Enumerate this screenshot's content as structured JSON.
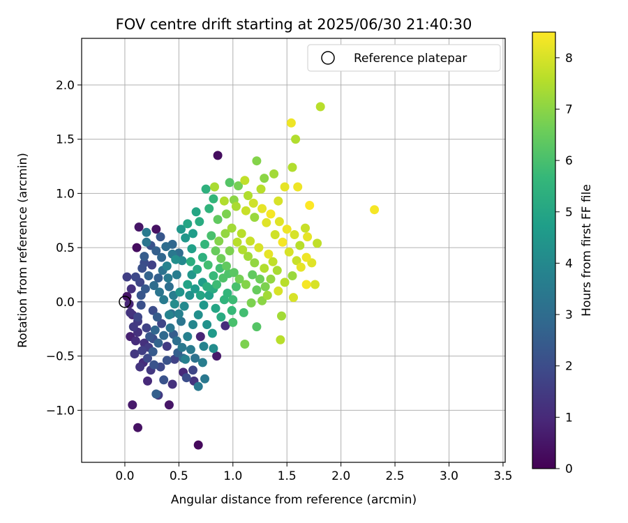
{
  "chart_data": {
    "type": "scatter",
    "title": "FOV centre drift starting at 2025/06/30 21:40:30",
    "xlabel": "Angular distance from reference (arcmin)",
    "ylabel": "Rotation from reference (arcmin)",
    "xlim": [
      -0.4,
      3.52
    ],
    "ylim": [
      -1.48,
      2.43
    ],
    "xticks": [
      0.0,
      0.5,
      1.0,
      1.5,
      2.0,
      2.5,
      3.0,
      3.5
    ],
    "xtick_labels": [
      "0.0",
      "0.5",
      "1.0",
      "1.5",
      "2.0",
      "2.5",
      "3.0",
      "3.5"
    ],
    "yticks": [
      -1.0,
      -0.5,
      0.0,
      0.5,
      1.0,
      1.5,
      2.0
    ],
    "ytick_labels": [
      "−1.0",
      "−0.5",
      "0.0",
      "0.5",
      "1.0",
      "1.5",
      "2.0"
    ],
    "grid": true,
    "legend_position": "top-right",
    "legend": [
      {
        "label": "Reference platepar",
        "marker": "open-circle"
      }
    ],
    "reference_point": {
      "x": 0.0,
      "y": 0.0
    },
    "colorbar": {
      "label": "Hours from first FF file",
      "colormap": "viridis",
      "range": [
        0,
        8.5
      ],
      "ticks": [
        0,
        1,
        2,
        3,
        4,
        5,
        6,
        7,
        8
      ],
      "tick_labels": [
        "0",
        "1",
        "2",
        "3",
        "4",
        "5",
        "6",
        "7",
        "8"
      ]
    },
    "viridis_stops": [
      "#440154",
      "#482878",
      "#3e4989",
      "#31688e",
      "#26828e",
      "#1f9e89",
      "#35b779",
      "#6ece58",
      "#b5de2b",
      "#fde725"
    ],
    "points": [
      [
        0.86,
        1.35,
        0.3
      ],
      [
        0.68,
        -1.32,
        0.2
      ],
      [
        0.12,
        -1.16,
        0.4
      ],
      [
        0.07,
        -0.95,
        0.6
      ],
      [
        0.41,
        -0.95,
        0.5
      ],
      [
        0.13,
        0.69,
        0.5
      ],
      [
        0.11,
        0.5,
        0.3
      ],
      [
        0.29,
        0.67,
        0.4
      ],
      [
        0.02,
        0.23,
        1.6
      ],
      [
        0.02,
        0.05,
        0.5
      ],
      [
        0.31,
        -0.86,
        1.5
      ],
      [
        0.44,
        -0.76,
        1.2
      ],
      [
        0.64,
        -0.73,
        1.3
      ],
      [
        0.54,
        -0.65,
        1.0
      ],
      [
        0.21,
        -0.73,
        1.0
      ],
      [
        0.05,
        -0.32,
        0.8
      ],
      [
        0.14,
        -0.6,
        1.3
      ],
      [
        0.85,
        -0.5,
        0.6
      ],
      [
        0.7,
        -0.32,
        0.9
      ],
      [
        0.93,
        -0.22,
        1.1
      ],
      [
        0.36,
        -0.72,
        2.2
      ],
      [
        0.63,
        -0.63,
        1.8
      ],
      [
        0.68,
        -0.78,
        3.4
      ],
      [
        0.74,
        -0.71,
        3.4
      ],
      [
        0.29,
        -0.85,
        2.6
      ],
      [
        0.57,
        -0.7,
        2.0
      ],
      [
        0.46,
        -0.53,
        1.7
      ],
      [
        0.27,
        -0.58,
        2.2
      ],
      [
        0.39,
        -0.41,
        1.5
      ],
      [
        0.09,
        -0.48,
        1.4
      ],
      [
        0.18,
        -0.38,
        1.2
      ],
      [
        0.34,
        -0.2,
        1.8
      ],
      [
        0.12,
        -0.18,
        1.5
      ],
      [
        0.26,
        -0.08,
        2.0
      ],
      [
        0.05,
        -0.1,
        1.3
      ],
      [
        0.15,
        0.06,
        2.3
      ],
      [
        0.1,
        0.23,
        1.9
      ],
      [
        0.25,
        0.34,
        1.7
      ],
      [
        0.18,
        0.42,
        2.5
      ],
      [
        0.2,
        0.55,
        3.3
      ],
      [
        0.2,
        0.64,
        3.5
      ],
      [
        0.33,
        0.6,
        2.3
      ],
      [
        0.44,
        0.53,
        2.8
      ],
      [
        0.5,
        0.45,
        3.0
      ],
      [
        0.31,
        0.22,
        2.6
      ],
      [
        0.41,
        0.14,
        3.1
      ],
      [
        0.23,
        -0.32,
        2.3
      ],
      [
        0.28,
        -0.26,
        2.8
      ],
      [
        0.45,
        -0.3,
        2.5
      ],
      [
        0.52,
        -0.18,
        3.3
      ],
      [
        0.61,
        -0.44,
        3.5
      ],
      [
        0.73,
        -0.41,
        3.8
      ],
      [
        0.82,
        -0.43,
        4.1
      ],
      [
        0.56,
        -0.53,
        3.7
      ],
      [
        0.43,
        -0.11,
        3.2
      ],
      [
        0.39,
        0.33,
        3.8
      ],
      [
        0.47,
        0.39,
        4.2
      ],
      [
        0.56,
        0.59,
        4.5
      ],
      [
        0.62,
        0.49,
        4.8
      ],
      [
        0.66,
        0.83,
        5.0
      ],
      [
        0.75,
        1.04,
        5.4
      ],
      [
        0.82,
        0.95,
        5.6
      ],
      [
        0.78,
        0.86,
        5.5
      ],
      [
        0.69,
        0.74,
        5.2
      ],
      [
        0.53,
        0.38,
        4.0
      ],
      [
        0.62,
        0.25,
        4.5
      ],
      [
        0.72,
        0.18,
        4.7
      ],
      [
        0.82,
        0.12,
        5.2
      ],
      [
        0.92,
        0.02,
        5.5
      ],
      [
        1.0,
        0.02,
        5.8
      ],
      [
        0.99,
        -0.08,
        5.7
      ],
      [
        1.1,
        -0.1,
        5.9
      ],
      [
        1.0,
        -0.19,
        6.0
      ],
      [
        1.22,
        -0.23,
        6.2
      ],
      [
        1.11,
        -0.39,
        6.8
      ],
      [
        1.45,
        -0.13,
        7.3
      ],
      [
        1.44,
        -0.35,
        7.6
      ],
      [
        1.56,
        0.04,
        8.0
      ],
      [
        1.68,
        0.16,
        8.4
      ],
      [
        1.76,
        0.16,
        8.0
      ],
      [
        1.78,
        0.54,
        7.7
      ],
      [
        1.69,
        0.6,
        8.2
      ],
      [
        1.67,
        0.68,
        7.8
      ],
      [
        1.71,
        0.89,
        8.5
      ],
      [
        1.6,
        1.06,
        8.3
      ],
      [
        1.55,
        1.24,
        7.5
      ],
      [
        1.58,
        1.5,
        7.5
      ],
      [
        1.54,
        1.65,
        8.3
      ],
      [
        1.81,
        1.8,
        7.6
      ],
      [
        2.31,
        0.85,
        8.4
      ],
      [
        1.38,
        1.18,
        7.3
      ],
      [
        1.22,
        1.3,
        6.9
      ],
      [
        1.29,
        1.14,
        7.0
      ],
      [
        1.48,
        1.06,
        8.2
      ],
      [
        1.42,
        0.93,
        8.0
      ],
      [
        1.26,
        1.04,
        7.6
      ],
      [
        1.11,
        1.12,
        7.7
      ],
      [
        1.05,
        1.07,
        6.7
      ],
      [
        0.97,
        1.1,
        6.2
      ],
      [
        0.83,
        1.06,
        7.4
      ],
      [
        0.92,
        0.93,
        7.5
      ],
      [
        1.03,
        0.88,
        7.4
      ],
      [
        1.12,
        0.84,
        7.8
      ],
      [
        1.2,
        0.78,
        7.2
      ],
      [
        1.31,
        0.73,
        8.1
      ],
      [
        1.39,
        0.62,
        7.9
      ],
      [
        1.46,
        0.55,
        8.4
      ],
      [
        1.52,
        0.46,
        8.0
      ],
      [
        1.59,
        0.38,
        7.8
      ],
      [
        1.63,
        0.32,
        8.2
      ],
      [
        1.55,
        0.24,
        7.2
      ],
      [
        1.48,
        0.18,
        7.6
      ],
      [
        1.42,
        0.1,
        8.0
      ],
      [
        1.32,
        0.06,
        7.3
      ],
      [
        1.27,
        0.01,
        7.0
      ],
      [
        1.17,
        -0.01,
        6.8
      ],
      [
        1.22,
        0.11,
        6.5
      ],
      [
        1.12,
        0.16,
        6.9
      ],
      [
        1.06,
        0.21,
        6.7
      ],
      [
        1.01,
        0.27,
        6.3
      ],
      [
        0.94,
        0.33,
        6.4
      ],
      [
        0.89,
        0.4,
        6.6
      ],
      [
        0.84,
        0.47,
        6.5
      ],
      [
        0.87,
        0.56,
        6.9
      ],
      [
        0.93,
        0.63,
        7.1
      ],
      [
        0.99,
        0.68,
        7.3
      ],
      [
        1.08,
        0.63,
        7.6
      ],
      [
        1.16,
        0.56,
        7.8
      ],
      [
        1.24,
        0.5,
        8.0
      ],
      [
        1.33,
        0.44,
        8.2
      ],
      [
        1.37,
        0.37,
        7.7
      ],
      [
        1.29,
        0.31,
        7.5
      ],
      [
        1.2,
        0.36,
        7.1
      ],
      [
        1.14,
        0.42,
        7.3
      ],
      [
        1.09,
        0.48,
        7.5
      ],
      [
        1.04,
        0.55,
        7.6
      ],
      [
        0.97,
        0.47,
        6.8
      ],
      [
        0.91,
        0.22,
        6.1
      ],
      [
        0.85,
        0.16,
        5.8
      ],
      [
        0.77,
        0.34,
        5.9
      ],
      [
        0.72,
        0.41,
        5.4
      ],
      [
        0.67,
        0.3,
        5.1
      ],
      [
        0.61,
        0.37,
        5.3
      ],
      [
        0.58,
        0.16,
        4.9
      ],
      [
        0.51,
        0.09,
        4.4
      ],
      [
        0.46,
        -0.02,
        4.1
      ],
      [
        0.41,
        -0.12,
        3.8
      ],
      [
        0.36,
        0.02,
        3.5
      ],
      [
        0.32,
        0.09,
        3.3
      ],
      [
        0.27,
        0.15,
        3.0
      ],
      [
        0.22,
        0.24,
        2.7
      ],
      [
        0.19,
        0.12,
        2.4
      ],
      [
        0.15,
        -0.03,
        2.1
      ],
      [
        0.12,
        -0.14,
        1.8
      ],
      [
        0.08,
        -0.23,
        1.5
      ],
      [
        0.1,
        -0.36,
        1.1
      ],
      [
        0.16,
        -0.45,
        1.6
      ],
      [
        0.21,
        -0.52,
        1.9
      ],
      [
        0.26,
        -0.46,
        2.4
      ],
      [
        0.31,
        -0.38,
        2.7
      ],
      [
        0.36,
        -0.31,
        2.9
      ],
      [
        0.42,
        -0.24,
        3.3
      ],
      [
        0.48,
        -0.36,
        3.1
      ],
      [
        0.53,
        -0.42,
        3.4
      ],
      [
        0.58,
        -0.32,
        3.7
      ],
      [
        0.63,
        -0.21,
        3.9
      ],
      [
        0.68,
        -0.12,
        4.2
      ],
      [
        0.73,
        -0.03,
        4.5
      ],
      [
        0.78,
        0.06,
        4.8
      ],
      [
        0.84,
        -0.06,
        5.0
      ],
      [
        0.89,
        -0.14,
        5.2
      ],
      [
        0.95,
        0.08,
        5.6
      ],
      [
        0.58,
        0.72,
        5.0
      ],
      [
        0.63,
        0.63,
        4.7
      ],
      [
        0.52,
        0.67,
        4.5
      ],
      [
        0.48,
        0.25,
        3.6
      ],
      [
        0.44,
        0.44,
        3.4
      ],
      [
        0.38,
        0.51,
        3.0
      ],
      [
        0.34,
        0.41,
        2.8
      ],
      [
        0.29,
        0.47,
        2.6
      ],
      [
        0.24,
        0.52,
        2.2
      ],
      [
        0.16,
        0.31,
        2.1
      ],
      [
        0.06,
        0.12,
        1.2
      ],
      [
        0.04,
        -0.02,
        0.9
      ],
      [
        0.07,
        -0.12,
        1.0
      ],
      [
        0.24,
        -0.63,
        1.4
      ],
      [
        0.33,
        -0.6,
        1.9
      ],
      [
        0.39,
        -0.54,
        2.2
      ],
      [
        0.49,
        -0.47,
        2.6
      ],
      [
        0.54,
        -0.52,
        2.9
      ],
      [
        0.65,
        -0.52,
        3.2
      ],
      [
        0.72,
        -0.56,
        3.6
      ],
      [
        0.76,
        -0.21,
        4.3
      ],
      [
        0.81,
        -0.29,
        4.6
      ],
      [
        0.74,
        0.53,
        5.6
      ],
      [
        0.8,
        0.61,
        6.0
      ],
      [
        0.86,
        0.76,
        6.4
      ],
      [
        0.94,
        0.81,
        6.8
      ],
      [
        1.01,
        0.94,
        7.0
      ],
      [
        1.14,
        0.98,
        7.5
      ],
      [
        1.19,
        0.91,
        7.9
      ],
      [
        1.27,
        0.86,
        8.2
      ],
      [
        1.35,
        0.81,
        8.4
      ],
      [
        1.43,
        0.74,
        8.1
      ],
      [
        1.5,
        0.67,
        8.3
      ],
      [
        1.57,
        0.62,
        8.0
      ],
      [
        1.62,
        0.52,
        7.6
      ],
      [
        1.68,
        0.41,
        8.3
      ],
      [
        1.73,
        0.36,
        8.1
      ],
      [
        1.41,
        0.29,
        7.4
      ],
      [
        1.35,
        0.21,
        7.1
      ],
      [
        1.3,
        0.14,
        6.8
      ],
      [
        1.25,
        0.21,
        6.6
      ],
      [
        1.18,
        0.25,
        6.4
      ],
      [
        1.03,
        0.14,
        6.0
      ],
      [
        0.96,
        0.26,
        6.1
      ],
      [
        0.88,
        0.31,
        5.9
      ],
      [
        0.82,
        0.24,
        5.7
      ],
      [
        0.76,
        0.14,
        5.3
      ],
      [
        0.7,
        0.06,
        5.0
      ],
      [
        0.65,
        0.12,
        4.6
      ],
      [
        0.6,
        0.06,
        4.3
      ],
      [
        0.55,
        -0.04,
        4.0
      ],
      [
        0.5,
        -0.11,
        3.7
      ],
      [
        0.45,
        0.06,
        3.6
      ],
      [
        0.4,
        0.22,
        3.5
      ],
      [
        0.35,
        0.29,
        3.2
      ],
      [
        0.3,
        -0.14,
        2.5
      ],
      [
        0.26,
        -0.34,
        2.0
      ],
      [
        0.2,
        -0.24,
        1.7
      ],
      [
        0.17,
        -0.56,
        1.1
      ],
      [
        0.22,
        -0.42,
        1.5
      ],
      [
        0.12,
        -0.28,
        1.2
      ],
      [
        0.14,
        0.18,
        1.8
      ],
      [
        0.18,
        0.36,
        2.0
      ]
    ]
  }
}
